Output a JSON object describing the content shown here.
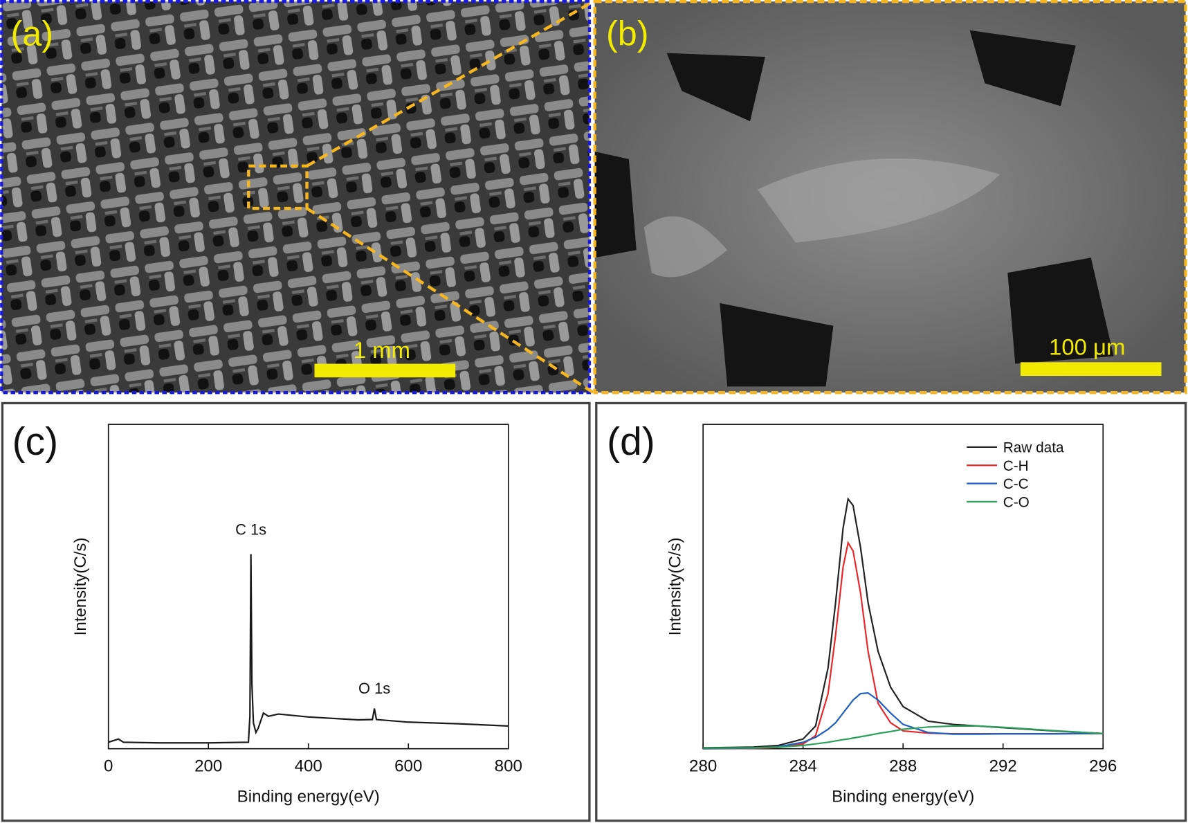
{
  "panels": [
    {
      "label": "(a)",
      "scale_bar": "1 mm"
    },
    {
      "label": "(b)",
      "scale_bar": "100 μm"
    }
  ],
  "chart_data": [
    {
      "type": "line",
      "label": "(c)",
      "xlabel": "Binding energy(eV)",
      "ylabel": "Intensity(C/s)",
      "xlim": [
        0,
        800
      ],
      "xticks": [
        0,
        200,
        400,
        600,
        800
      ],
      "ylim": [
        0,
        100
      ],
      "x": [
        0,
        20,
        30,
        100,
        200,
        280,
        283,
        285,
        287,
        290,
        295,
        300,
        310,
        320,
        340,
        400,
        500,
        528,
        532,
        536,
        600,
        700,
        800
      ],
      "series": [
        {
          "color": "#1a1a1a",
          "values": [
            2,
            3,
            2,
            1.8,
            1.8,
            2,
            10,
            60,
            20,
            8,
            5,
            6.5,
            11,
            10,
            10.7,
            9.8,
            8.9,
            9,
            12.4,
            9,
            8.2,
            7.7,
            7
          ]
        }
      ],
      "annotations": [
        {
          "text": "C 1s",
          "x": 285,
          "y": 66
        },
        {
          "text": "O 1s",
          "x": 532,
          "y": 17
        }
      ]
    },
    {
      "type": "line",
      "label": "(d)",
      "xlabel": "Binding energy(eV)",
      "ylabel": "Intensity(C/s)",
      "xlim": [
        280,
        296
      ],
      "xticks": [
        280,
        284,
        288,
        292,
        296
      ],
      "ylim": [
        0,
        100
      ],
      "legend": "upper right",
      "x": [
        280,
        282,
        283,
        284,
        284.5,
        285,
        285.3,
        285.6,
        285.8,
        286,
        286.3,
        286.6,
        287,
        287.5,
        288,
        289,
        290,
        291,
        292,
        294,
        296
      ],
      "series": [
        {
          "name": "Raw data",
          "color": "#222222",
          "values": [
            0.3,
            0.5,
            1,
            3,
            7,
            25,
            45,
            68,
            77,
            75,
            62,
            45,
            30,
            19,
            13,
            8.5,
            7.5,
            7,
            6.5,
            5.5,
            4.7
          ]
        },
        {
          "name": "C-H",
          "color": "#e8262b",
          "values": [
            0,
            0.1,
            0.4,
            1.5,
            4,
            17,
            35,
            56,
            63.5,
            61,
            48,
            30,
            14,
            8,
            5.5,
            4.8,
            4.6,
            4.6,
            4.6,
            4.6,
            4.7
          ]
        },
        {
          "name": "C-C",
          "color": "#1f5fbf",
          "values": [
            0,
            0.2,
            0.6,
            2,
            3.5,
            6,
            8,
            11,
            13,
            15,
            17,
            17.2,
            15,
            11,
            7.5,
            5,
            4.5,
            4.5,
            4.6,
            4.6,
            4.7
          ]
        },
        {
          "name": "C-O",
          "color": "#2ca05a",
          "values": [
            0.2,
            0.3,
            0.5,
            1,
            1.5,
            2,
            2.4,
            2.8,
            3,
            3.3,
            3.7,
            4.1,
            4.7,
            5.3,
            6,
            6.7,
            7,
            7,
            6.6,
            5.6,
            4.7
          ]
        }
      ]
    }
  ]
}
